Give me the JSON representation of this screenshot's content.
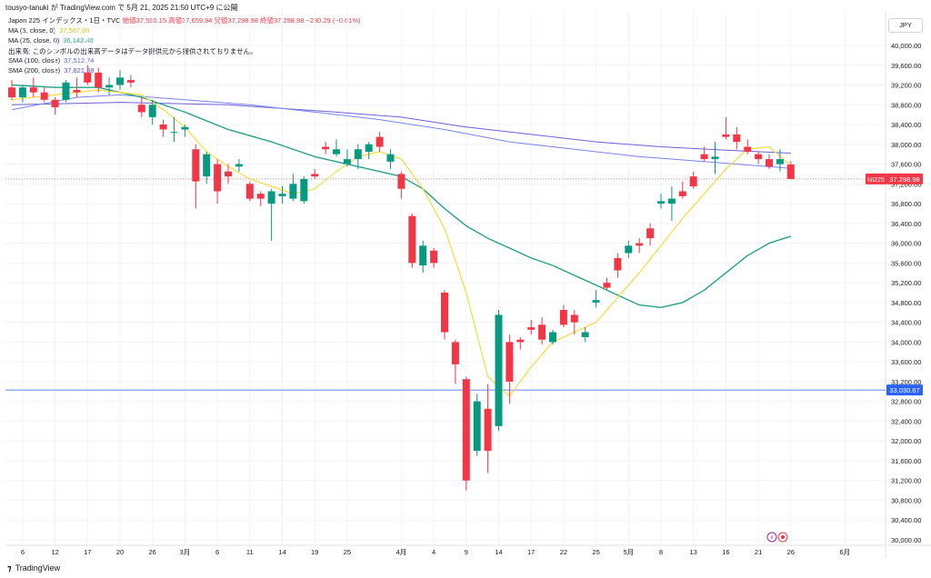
{
  "header": {
    "title": "tousyo-tanuki が TradingView.com で 5月 21, 2025 21:50 UTC+9 に公開"
  },
  "legend": {
    "symbol": "Japan 225 インデックス・1日・TVC",
    "ohlc": "始値37,590.15 高値37,659.94 安値37,298.98 終値37,298.98 −230.29 (−0.61%)",
    "ma5": {
      "label": "MA (5, close, 0)",
      "value": "37,567.09",
      "color": "#f5dc3c"
    },
    "ma25": {
      "label": "MA (25, close, 0)",
      "value": "36,142.40",
      "color": "#26a188"
    },
    "volume": "出来高: このシンボルの出来高データはデータ提供元から提供されておりません。",
    "sma100": {
      "label": "SMA (100, close)",
      "value": "37,512.74",
      "color": "#7b83ef"
    },
    "sma200": {
      "label": "SMA (200, close)",
      "value": "37,821.38",
      "color": "#6f5fd8"
    }
  },
  "currency_button": "JPY",
  "brand": "TradingView",
  "price_tags": {
    "last": {
      "label": "NI225",
      "value": "37,298.98",
      "color": "#f23645"
    },
    "hline": {
      "value": "33,030.67",
      "color": "#2962ff"
    }
  },
  "icons": [
    "lightning-icon",
    "record-icon"
  ],
  "chart_data": {
    "type": "candlestick",
    "y_ticks": [
      30000,
      30400,
      30800,
      31200,
      31600,
      32000,
      32400,
      32800,
      33200,
      33600,
      34000,
      34400,
      34800,
      35200,
      35600,
      36000,
      36400,
      36800,
      37200,
      37600,
      38000,
      38400,
      38800,
      39200,
      39600,
      40000
    ],
    "y_tick_labels": [
      "30,000.00",
      "30,400.00",
      "30,800.00",
      "31,200.00",
      "31,600.00",
      "32,000.00",
      "32,400.00",
      "32,800.00",
      "33,200.00",
      "33,600.00",
      "34,000.00",
      "34,400.00",
      "34,800.00",
      "35,200.00",
      "35,600.00",
      "36,000.00",
      "36,400.00",
      "36,800.00",
      "37,200.00",
      "37,600.00",
      "38,000.00",
      "38,400.00",
      "38,800.00",
      "39,200.00",
      "39,600.00",
      "40,000.00"
    ],
    "x_labels": [
      {
        "i": 1,
        "label": "6"
      },
      {
        "i": 4,
        "label": "12"
      },
      {
        "i": 7,
        "label": "17"
      },
      {
        "i": 10,
        "label": "20"
      },
      {
        "i": 13,
        "label": "26"
      },
      {
        "i": 16,
        "label": "3月"
      },
      {
        "i": 19,
        "label": "6"
      },
      {
        "i": 22,
        "label": "11"
      },
      {
        "i": 25,
        "label": "14"
      },
      {
        "i": 28,
        "label": "19"
      },
      {
        "i": 31,
        "label": "25"
      },
      {
        "i": 36,
        "label": "4月"
      },
      {
        "i": 39,
        "label": "4"
      },
      {
        "i": 42,
        "label": "9"
      },
      {
        "i": 45,
        "label": "14"
      },
      {
        "i": 48,
        "label": "17"
      },
      {
        "i": 51,
        "label": "22"
      },
      {
        "i": 54,
        "label": "25"
      },
      {
        "i": 57,
        "label": "5月"
      },
      {
        "i": 60,
        "label": "8"
      },
      {
        "i": 63,
        "label": "13"
      },
      {
        "i": 66,
        "label": "16"
      },
      {
        "i": 69,
        "label": "21"
      },
      {
        "i": 72,
        "label": "26"
      },
      {
        "i": 77,
        "label": "6月"
      }
    ],
    "hline": 33030.67,
    "candles": [
      [
        39150,
        39300,
        38900,
        38950
      ],
      [
        38950,
        39200,
        38850,
        39150
      ],
      [
        39150,
        39350,
        38950,
        39050
      ],
      [
        39050,
        39150,
        38850,
        38900
      ],
      [
        38900,
        38950,
        38600,
        38750
      ],
      [
        38900,
        39300,
        38850,
        39250
      ],
      [
        39100,
        39350,
        38950,
        39050
      ],
      [
        39450,
        39600,
        39200,
        39250
      ],
      [
        39450,
        39550,
        39050,
        39150
      ],
      [
        39150,
        39350,
        39000,
        39200
      ],
      [
        39200,
        39500,
        39100,
        39350
      ],
      [
        39300,
        39400,
        39150,
        39250
      ],
      [
        38800,
        38950,
        38550,
        38650
      ],
      [
        38550,
        38900,
        38400,
        38800
      ],
      [
        38400,
        38500,
        38150,
        38300
      ],
      [
        38250,
        38550,
        38050,
        38250
      ],
      [
        38300,
        38400,
        38150,
        38350
      ],
      [
        37900,
        38000,
        36700,
        37250
      ],
      [
        37350,
        37850,
        37200,
        37800
      ],
      [
        37600,
        37700,
        36800,
        37050
      ],
      [
        37450,
        37600,
        37200,
        37350
      ],
      [
        37550,
        37700,
        37450,
        37600
      ],
      [
        37200,
        37250,
        36850,
        36900
      ],
      [
        37000,
        37050,
        36750,
        36900
      ],
      [
        36800,
        37100,
        36050,
        37050
      ],
      [
        36950,
        37150,
        36800,
        37000
      ],
      [
        36900,
        37400,
        36850,
        37200
      ],
      [
        36850,
        37350,
        36800,
        37300
      ],
      [
        37400,
        37500,
        37300,
        37350
      ],
      [
        37950,
        38050,
        37800,
        37900
      ],
      [
        37800,
        38100,
        37750,
        37900
      ],
      [
        37600,
        37900,
        37550,
        37700
      ],
      [
        37700,
        38000,
        37500,
        37900
      ],
      [
        37850,
        38050,
        37700,
        38000
      ],
      [
        38150,
        38250,
        37850,
        37950
      ],
      [
        37650,
        37900,
        37500,
        37800
      ],
      [
        37400,
        37450,
        36900,
        37100
      ],
      [
        36550,
        36600,
        35500,
        35600
      ],
      [
        35550,
        36050,
        35400,
        35950
      ],
      [
        35850,
        35900,
        35500,
        35600
      ],
      [
        35000,
        35050,
        34050,
        34200
      ],
      [
        34000,
        34050,
        33150,
        33550
      ],
      [
        33250,
        33300,
        31000,
        31200
      ],
      [
        31800,
        32950,
        31700,
        32800
      ],
      [
        32650,
        33150,
        31350,
        31800
      ],
      [
        32300,
        34650,
        32200,
        34550
      ],
      [
        34000,
        34150,
        32750,
        33200
      ],
      [
        34050,
        34100,
        33850,
        34000
      ],
      [
        34300,
        34450,
        34150,
        34250
      ],
      [
        34350,
        34500,
        33950,
        34050
      ],
      [
        34000,
        34250,
        33950,
        34200
      ],
      [
        34650,
        34750,
        34300,
        34350
      ],
      [
        34550,
        34650,
        34150,
        34400
      ],
      [
        34100,
        34300,
        34000,
        34200
      ],
      [
        34800,
        35050,
        34700,
        34850
      ],
      [
        35200,
        35300,
        35050,
        35100
      ],
      [
        35700,
        35800,
        35300,
        35450
      ],
      [
        35800,
        36050,
        35700,
        35950
      ],
      [
        36000,
        36100,
        35800,
        35950
      ],
      [
        36300,
        36400,
        35950,
        36100
      ],
      [
        36800,
        37000,
        36700,
        36850
      ],
      [
        36800,
        37150,
        36450,
        36900
      ],
      [
        37050,
        37250,
        36900,
        36950
      ],
      [
        37350,
        37450,
        37100,
        37150
      ],
      [
        37800,
        37950,
        37650,
        37700
      ],
      [
        37700,
        38050,
        37400,
        37750
      ],
      [
        38200,
        38550,
        38100,
        38150
      ],
      [
        38200,
        38350,
        37900,
        38050
      ],
      [
        37950,
        38100,
        37800,
        37850
      ],
      [
        37800,
        37850,
        37600,
        37700
      ],
      [
        37700,
        37800,
        37500,
        37550
      ],
      [
        37600,
        37900,
        37450,
        37700
      ],
      [
        37590.15,
        37659.94,
        37298.98,
        37298.98
      ]
    ],
    "ma5": [
      [
        0,
        38900
      ],
      [
        8,
        39100
      ],
      [
        12,
        39000
      ],
      [
        14,
        38700
      ],
      [
        16,
        38350
      ],
      [
        18,
        37850
      ],
      [
        20,
        37550
      ],
      [
        22,
        37300
      ],
      [
        24,
        37150
      ],
      [
        26,
        37000
      ],
      [
        28,
        37100
      ],
      [
        30,
        37450
      ],
      [
        32,
        37750
      ],
      [
        34,
        37850
      ],
      [
        36,
        37700
      ],
      [
        38,
        37100
      ],
      [
        40,
        36300
      ],
      [
        42,
        35000
      ],
      [
        44,
        33300
      ],
      [
        46,
        32900
      ],
      [
        48,
        33500
      ],
      [
        50,
        34000
      ],
      [
        52,
        34200
      ],
      [
        54,
        34400
      ],
      [
        56,
        34900
      ],
      [
        58,
        35400
      ],
      [
        60,
        35950
      ],
      [
        62,
        36500
      ],
      [
        64,
        37000
      ],
      [
        66,
        37500
      ],
      [
        68,
        37900
      ],
      [
        70,
        37950
      ],
      [
        72,
        37567
      ]
    ],
    "ma25": [
      [
        0,
        39200
      ],
      [
        4,
        39150
      ],
      [
        8,
        39150
      ],
      [
        12,
        38950
      ],
      [
        16,
        38650
      ],
      [
        20,
        38300
      ],
      [
        24,
        38050
      ],
      [
        28,
        37750
      ],
      [
        32,
        37550
      ],
      [
        36,
        37350
      ],
      [
        38,
        37100
      ],
      [
        40,
        36700
      ],
      [
        42,
        36350
      ],
      [
        44,
        36100
      ],
      [
        46,
        35900
      ],
      [
        48,
        35700
      ],
      [
        50,
        35550
      ],
      [
        52,
        35350
      ],
      [
        54,
        35150
      ],
      [
        56,
        34950
      ],
      [
        58,
        34750
      ],
      [
        60,
        34700
      ],
      [
        62,
        34800
      ],
      [
        64,
        35050
      ],
      [
        66,
        35400
      ],
      [
        68,
        35750
      ],
      [
        70,
        36000
      ],
      [
        72,
        36142
      ]
    ],
    "sma200": [
      [
        0,
        38800
      ],
      [
        10,
        38850
      ],
      [
        20,
        38800
      ],
      [
        30,
        38650
      ],
      [
        36,
        38550
      ],
      [
        42,
        38350
      ],
      [
        48,
        38200
      ],
      [
        54,
        38050
      ],
      [
        60,
        37950
      ],
      [
        66,
        37880
      ],
      [
        72,
        37821
      ]
    ],
    "sma100": [
      [
        0,
        38700
      ],
      [
        6,
        38950
      ],
      [
        10,
        39000
      ],
      [
        16,
        38900
      ],
      [
        22,
        38800
      ],
      [
        28,
        38650
      ],
      [
        34,
        38500
      ],
      [
        40,
        38300
      ],
      [
        46,
        38050
      ],
      [
        52,
        37900
      ],
      [
        58,
        37750
      ],
      [
        64,
        37650
      ],
      [
        72,
        37513
      ]
    ]
  }
}
